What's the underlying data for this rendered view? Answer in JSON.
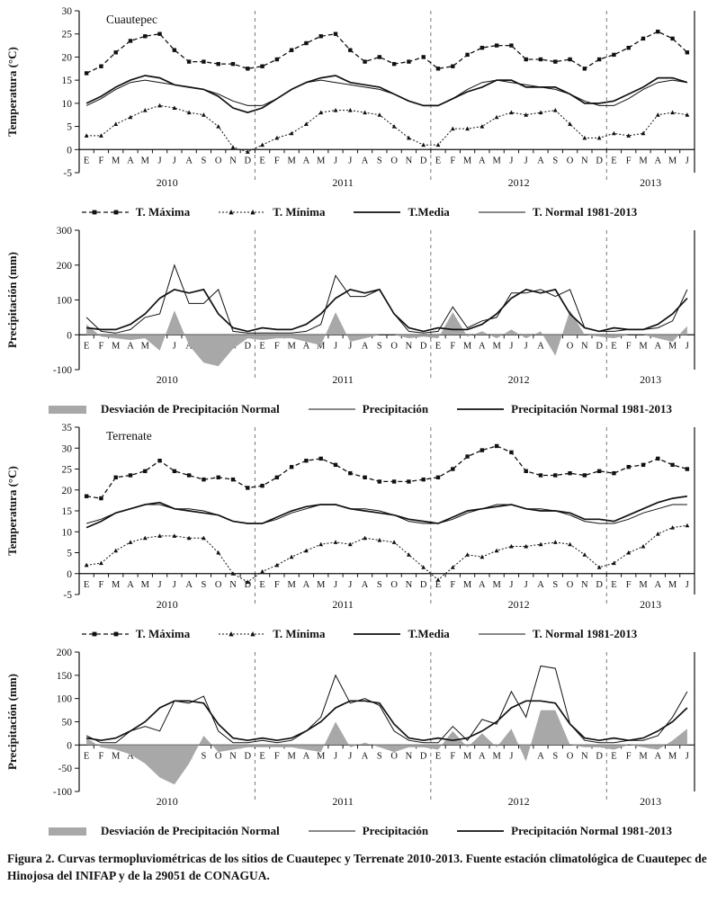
{
  "figure": {
    "caption": "Figura 2. Curvas termopluviométricas de los sitios de Cuautepec y Terrenate 2010-2013. Fuente estación climatológica de Cuautepec de Hinojosa del INIFAP y de la 29051 de CONAGUA."
  },
  "months": [
    "E",
    "F",
    "M",
    "A",
    "M",
    "J",
    "J",
    "A",
    "S",
    "O",
    "N",
    "D",
    "E",
    "F",
    "M",
    "A",
    "M",
    "J",
    "J",
    "A",
    "S",
    "O",
    "N",
    "D",
    "E",
    "F",
    "M",
    "A",
    "M",
    "J",
    "J",
    "A",
    "S",
    "O",
    "N",
    "D",
    "E",
    "F",
    "M",
    "A",
    "M",
    "J"
  ],
  "years": [
    {
      "label": "2010",
      "start": 0,
      "span": 12
    },
    {
      "label": "2011",
      "start": 12,
      "span": 12
    },
    {
      "label": "2012",
      "start": 24,
      "span": 12
    },
    {
      "label": "2013",
      "start": 36,
      "span": 6
    }
  ],
  "colors": {
    "line": "#111111",
    "area": "#a8a8a8"
  },
  "chart_data": [
    {
      "id": "cuautepec-temperature",
      "type": "line",
      "title": "Cuautepec",
      "ylabel": "Temperatura (°C)",
      "ylim": [
        -5,
        30
      ],
      "ytick_step": 5,
      "grid": false,
      "legend_position": "bottom",
      "series": [
        {
          "name": "T. Máxima",
          "style": "dash-square",
          "values": [
            16.5,
            18,
            21,
            23.5,
            24.5,
            25,
            21.5,
            19,
            19,
            18.5,
            18.5,
            17.5,
            18,
            19.5,
            21.5,
            23,
            24.5,
            25,
            21.5,
            19,
            20,
            18.5,
            19,
            20,
            17.5,
            18,
            20.5,
            22,
            22.5,
            22.5,
            19.5,
            19.5,
            19,
            19.5,
            17.5,
            19.5,
            20.5,
            22,
            24,
            25.5,
            24,
            21
          ]
        },
        {
          "name": "T. Mínima",
          "style": "dash-tri",
          "values": [
            3,
            3,
            5.5,
            7,
            8.5,
            9.5,
            9,
            8,
            7.5,
            5,
            0.5,
            -0.5,
            1,
            2.5,
            3.5,
            5.5,
            8,
            8.5,
            8.5,
            8,
            7.5,
            5,
            2.5,
            1,
            1,
            4.5,
            4.5,
            5,
            7,
            8,
            7.5,
            8,
            8.5,
            5.5,
            2.5,
            2.5,
            3.5,
            3,
            3.5,
            7.5,
            8,
            7.5
          ]
        },
        {
          "name": "T.Media",
          "style": "solid-thick",
          "values": [
            10,
            11.5,
            13.5,
            15,
            16,
            15.5,
            14,
            13.5,
            13,
            11.5,
            9,
            8,
            9,
            11,
            13,
            14.5,
            15.5,
            16,
            14.5,
            14,
            13.5,
            12,
            10.5,
            9.5,
            9.5,
            11,
            12.5,
            13.5,
            15,
            15,
            13.5,
            13.5,
            13.5,
            12,
            10,
            10,
            10.5,
            12,
            13.5,
            15.5,
            15.5,
            14.5
          ]
        },
        {
          "name": "T. Normal 1981-2013",
          "style": "solid-thin",
          "values": [
            9.5,
            11,
            13,
            14.5,
            15,
            14.5,
            14,
            13.5,
            13,
            12,
            10.5,
            9.5,
            9.5,
            11,
            13,
            14.5,
            15,
            14.5,
            14,
            13.5,
            13,
            12,
            10.5,
            9.5,
            9.5,
            11,
            13,
            14.5,
            15,
            14.5,
            14,
            13.5,
            13,
            12,
            10.5,
            9.5,
            9.5,
            11,
            13,
            14.5,
            15,
            14.5
          ]
        }
      ]
    },
    {
      "id": "cuautepec-precipitation",
      "type": "line",
      "title": "",
      "ylabel": "Precipitación (mm)",
      "ylim": [
        -100,
        300
      ],
      "ytick_step": 100,
      "grid": false,
      "legend_position": "bottom",
      "series": [
        {
          "name": "Desviación de Precipitación Normal",
          "style": "area-gray",
          "values": [
            30,
            -5,
            -10,
            -15,
            -10,
            -45,
            70,
            -30,
            -80,
            -90,
            -40,
            -10,
            -15,
            -10,
            -10,
            -20,
            -30,
            65,
            -20,
            -10,
            0,
            0,
            -10,
            -5,
            -10,
            65,
            -5,
            10,
            -10,
            15,
            -10,
            10,
            -60,
            70,
            0,
            -5,
            -10,
            0,
            0,
            -10,
            -20,
            25
          ]
        },
        {
          "name": "Precipitación",
          "style": "solid-thin",
          "values": [
            50,
            10,
            5,
            15,
            50,
            60,
            200,
            90,
            90,
            130,
            10,
            5,
            5,
            5,
            5,
            10,
            30,
            170,
            110,
            110,
            130,
            60,
            10,
            5,
            10,
            80,
            20,
            40,
            50,
            120,
            120,
            130,
            110,
            130,
            20,
            10,
            10,
            15,
            15,
            20,
            40,
            130
          ]
        },
        {
          "name": "Precipitación Normal 1981-2013",
          "style": "solid-thick",
          "values": [
            20,
            15,
            15,
            30,
            60,
            105,
            130,
            120,
            130,
            60,
            20,
            10,
            20,
            15,
            15,
            30,
            60,
            105,
            130,
            120,
            130,
            60,
            20,
            10,
            20,
            15,
            15,
            30,
            60,
            105,
            130,
            120,
            130,
            60,
            20,
            10,
            20,
            15,
            15,
            30,
            60,
            105
          ]
        }
      ]
    },
    {
      "id": "terrenate-temperature",
      "type": "line",
      "title": "Terrenate",
      "ylabel": "Temperatura (°C)",
      "ylim": [
        -5,
        35
      ],
      "ytick_step": 5,
      "grid": false,
      "legend_position": "bottom",
      "series": [
        {
          "name": "T. Máxima",
          "style": "dash-square",
          "values": [
            18.5,
            18,
            23,
            23.5,
            24.5,
            27,
            24.5,
            23.5,
            22.5,
            23,
            22.5,
            20.5,
            21,
            23,
            25.5,
            27,
            27.5,
            26,
            24,
            23,
            22,
            22,
            22,
            22.5,
            23,
            25,
            28,
            29.5,
            30.5,
            29,
            24.5,
            23.5,
            23.5,
            24,
            23.5,
            24.5,
            24,
            25.5,
            26,
            27.5,
            26,
            25
          ]
        },
        {
          "name": "T. Mínima",
          "style": "dash-tri",
          "values": [
            2,
            2.5,
            5.5,
            7.5,
            8.5,
            9,
            9,
            8.5,
            8.5,
            5,
            0,
            -2,
            0.5,
            2,
            4,
            5.5,
            7,
            7.5,
            7,
            8.5,
            8,
            7.5,
            4.5,
            1.5,
            -1.5,
            1.5,
            4.5,
            4,
            5.5,
            6.5,
            6.5,
            7,
            7.5,
            7,
            4.5,
            1.5,
            2.5,
            5,
            6.5,
            9.5,
            11,
            11.5
          ]
        },
        {
          "name": "T.Media",
          "style": "solid-thick",
          "values": [
            11,
            12.5,
            14.5,
            15.5,
            16.5,
            17,
            15.5,
            15,
            14.5,
            14,
            12.5,
            12,
            12,
            13.5,
            15,
            16,
            16.5,
            16.5,
            15.5,
            15,
            14.5,
            14,
            13,
            12.5,
            12,
            13.5,
            15,
            15.5,
            16,
            16.5,
            15.5,
            15,
            15,
            14.5,
            13,
            13,
            12.5,
            14,
            15.5,
            17,
            18,
            18.5
          ]
        },
        {
          "name": "T. Normal 1981-2013",
          "style": "solid-thin",
          "values": [
            12,
            13,
            14.5,
            15.5,
            16.5,
            16.5,
            15.5,
            15.5,
            15,
            14,
            12.5,
            12,
            12,
            13,
            14.5,
            15.5,
            16.5,
            16.5,
            15.5,
            15.5,
            15,
            14,
            12.5,
            12,
            12,
            13,
            14.5,
            15.5,
            16.5,
            16.5,
            15.5,
            15.5,
            15,
            14,
            12.5,
            12,
            12,
            13,
            14.5,
            15.5,
            16.5,
            16.5
          ]
        }
      ]
    },
    {
      "id": "terrenate-precipitation",
      "type": "line",
      "title": "",
      "ylabel": "Precipitación (mm)",
      "ylim": [
        -100,
        200
      ],
      "ytick_step": 50,
      "grid": false,
      "legend_position": "bottom",
      "series": [
        {
          "name": "Desviación de Precipitación Normal",
          "style": "area-gray",
          "values": [
            15,
            -5,
            -10,
            -20,
            -40,
            -70,
            -85,
            -40,
            20,
            -15,
            -10,
            -5,
            -5,
            -5,
            -5,
            -10,
            -15,
            50,
            -5,
            5,
            -5,
            -15,
            -5,
            -5,
            -10,
            30,
            -5,
            25,
            -5,
            35,
            -35,
            75,
            75,
            0,
            -5,
            -5,
            -10,
            0,
            -5,
            -10,
            10,
            35
          ]
        },
        {
          "name": "Precipitación",
          "style": "solid-thin",
          "values": [
            20,
            5,
            5,
            30,
            40,
            30,
            95,
            90,
            105,
            30,
            5,
            5,
            10,
            5,
            10,
            30,
            60,
            150,
            90,
            100,
            85,
            30,
            10,
            5,
            5,
            40,
            10,
            55,
            45,
            115,
            60,
            170,
            165,
            45,
            10,
            5,
            5,
            10,
            10,
            20,
            60,
            115
          ]
        },
        {
          "name": "Precipitación Normal  1981-2013",
          "style": "solid-thick",
          "values": [
            15,
            10,
            15,
            30,
            50,
            80,
            95,
            95,
            90,
            45,
            15,
            10,
            15,
            10,
            15,
            30,
            50,
            80,
            95,
            95,
            90,
            45,
            15,
            10,
            15,
            10,
            15,
            30,
            50,
            80,
            95,
            95,
            90,
            45,
            15,
            10,
            15,
            10,
            15,
            30,
            50,
            80
          ]
        }
      ]
    }
  ]
}
